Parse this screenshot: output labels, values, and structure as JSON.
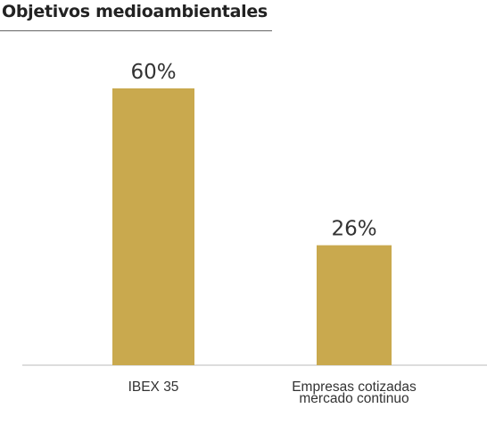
{
  "chart_data": {
    "type": "bar",
    "title": "Objetivos medioambientales",
    "categories": [
      [
        "IBEX 35"
      ],
      [
        "Empresas cotizadas",
        "mercado continuo"
      ]
    ],
    "values": [
      60,
      26
    ],
    "value_labels": [
      "60%",
      "26%"
    ],
    "ylim": [
      0,
      100
    ],
    "grid": false,
    "colors": {
      "bar": "#c9a94e",
      "axis": "#bbbbbb",
      "text": "#333333"
    }
  }
}
